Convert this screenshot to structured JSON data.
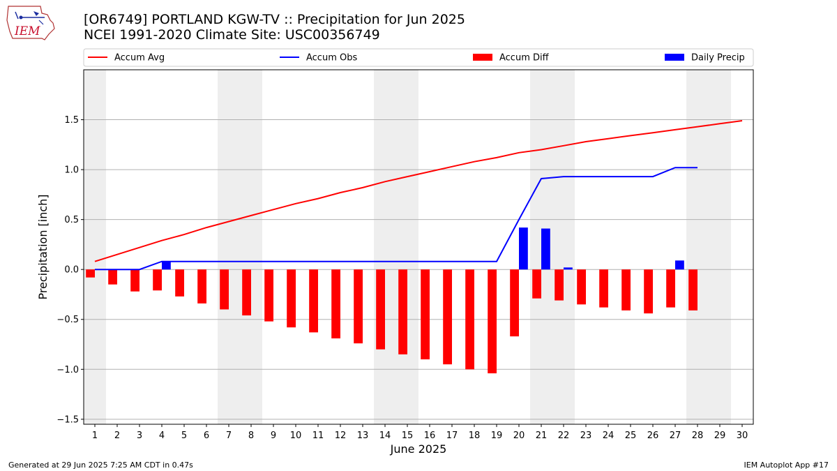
{
  "title_line1": "[OR6749] PORTLAND KGW-TV :: Precipitation for Jun 2025",
  "title_line2": "NCEI 1991-2020 Climate Site: USC00356749",
  "logo_text": "IEM",
  "footer_left": "Generated at 29 Jun 2025 7:25 AM CDT in 0.47s",
  "footer_right": "IEM Autoplot App #17",
  "colors": {
    "accum_avg": "#ff0000",
    "accum_obs": "#0000ff",
    "accum_diff": "#ff0000",
    "daily_precip": "#0000ff",
    "weekend_shade": "#eeeeee",
    "grid": "#b0b0b0"
  },
  "chart_data": {
    "type": "bar",
    "title": "[OR6749] PORTLAND KGW-TV :: Precipitation for Jun 2025",
    "subtitle": "NCEI 1991-2020 Climate Site: USC00356749",
    "xlabel": "June 2025",
    "ylabel": "Precipitation [inch]",
    "ylim": [
      -1.55,
      2.0
    ],
    "xlim": [
      0.5,
      30.5
    ],
    "yticks": [
      -1.5,
      -1.0,
      -0.5,
      0.0,
      0.5,
      1.0,
      1.5
    ],
    "ytick_labels": [
      "−1.5",
      "−1.0",
      "−0.5",
      "0.0",
      "0.5",
      "1.0",
      "1.5"
    ],
    "x": [
      1,
      2,
      3,
      4,
      5,
      6,
      7,
      8,
      9,
      10,
      11,
      12,
      13,
      14,
      15,
      16,
      17,
      18,
      19,
      20,
      21,
      22,
      23,
      24,
      25,
      26,
      27,
      28,
      29,
      30
    ],
    "grid": "horizontal",
    "legend_position": "top",
    "weekend_shading": [
      [
        0.5,
        1.5
      ],
      [
        6.5,
        8.5
      ],
      [
        13.5,
        15.5
      ],
      [
        20.5,
        22.5
      ],
      [
        27.5,
        29.5
      ]
    ],
    "series": [
      {
        "name": "Accum Avg",
        "kind": "line",
        "x": [
          1,
          2,
          3,
          4,
          5,
          6,
          7,
          8,
          9,
          10,
          11,
          12,
          13,
          14,
          15,
          16,
          17,
          18,
          19,
          20,
          21,
          22,
          23,
          24,
          25,
          26,
          27,
          28,
          29,
          30
        ],
        "values": [
          0.08,
          0.15,
          0.22,
          0.29,
          0.35,
          0.42,
          0.48,
          0.54,
          0.6,
          0.66,
          0.71,
          0.77,
          0.82,
          0.88,
          0.93,
          0.98,
          1.03,
          1.08,
          1.12,
          1.17,
          1.2,
          1.24,
          1.28,
          1.31,
          1.34,
          1.37,
          1.4,
          1.43,
          1.46,
          1.49
        ]
      },
      {
        "name": "Accum Obs",
        "kind": "line",
        "x": [
          1,
          2,
          3,
          4,
          5,
          6,
          7,
          8,
          9,
          10,
          11,
          12,
          13,
          14,
          15,
          16,
          17,
          18,
          19,
          20,
          21,
          22,
          23,
          24,
          25,
          26,
          27,
          28
        ],
        "values": [
          0.0,
          0.0,
          0.0,
          0.08,
          0.08,
          0.08,
          0.08,
          0.08,
          0.08,
          0.08,
          0.08,
          0.08,
          0.08,
          0.08,
          0.08,
          0.08,
          0.08,
          0.08,
          0.08,
          0.5,
          0.91,
          0.93,
          0.93,
          0.93,
          0.93,
          0.93,
          1.02,
          1.02
        ]
      },
      {
        "name": "Accum Diff",
        "kind": "bar",
        "x": [
          1,
          2,
          3,
          4,
          5,
          6,
          7,
          8,
          9,
          10,
          11,
          12,
          13,
          14,
          15,
          16,
          17,
          18,
          19,
          20,
          21,
          22,
          23,
          24,
          25,
          26,
          27,
          28
        ],
        "values": [
          -0.08,
          -0.15,
          -0.22,
          -0.21,
          -0.27,
          -0.34,
          -0.4,
          -0.46,
          -0.52,
          -0.58,
          -0.63,
          -0.69,
          -0.74,
          -0.8,
          -0.85,
          -0.9,
          -0.95,
          -1.0,
          -1.04,
          -0.67,
          -0.29,
          -0.31,
          -0.35,
          -0.38,
          -0.41,
          -0.44,
          -0.38,
          -0.41
        ]
      },
      {
        "name": "Daily Precip",
        "kind": "bar",
        "x": [
          4,
          20,
          21,
          22,
          27
        ],
        "values": [
          0.08,
          0.42,
          0.41,
          0.02,
          0.09
        ]
      }
    ]
  }
}
